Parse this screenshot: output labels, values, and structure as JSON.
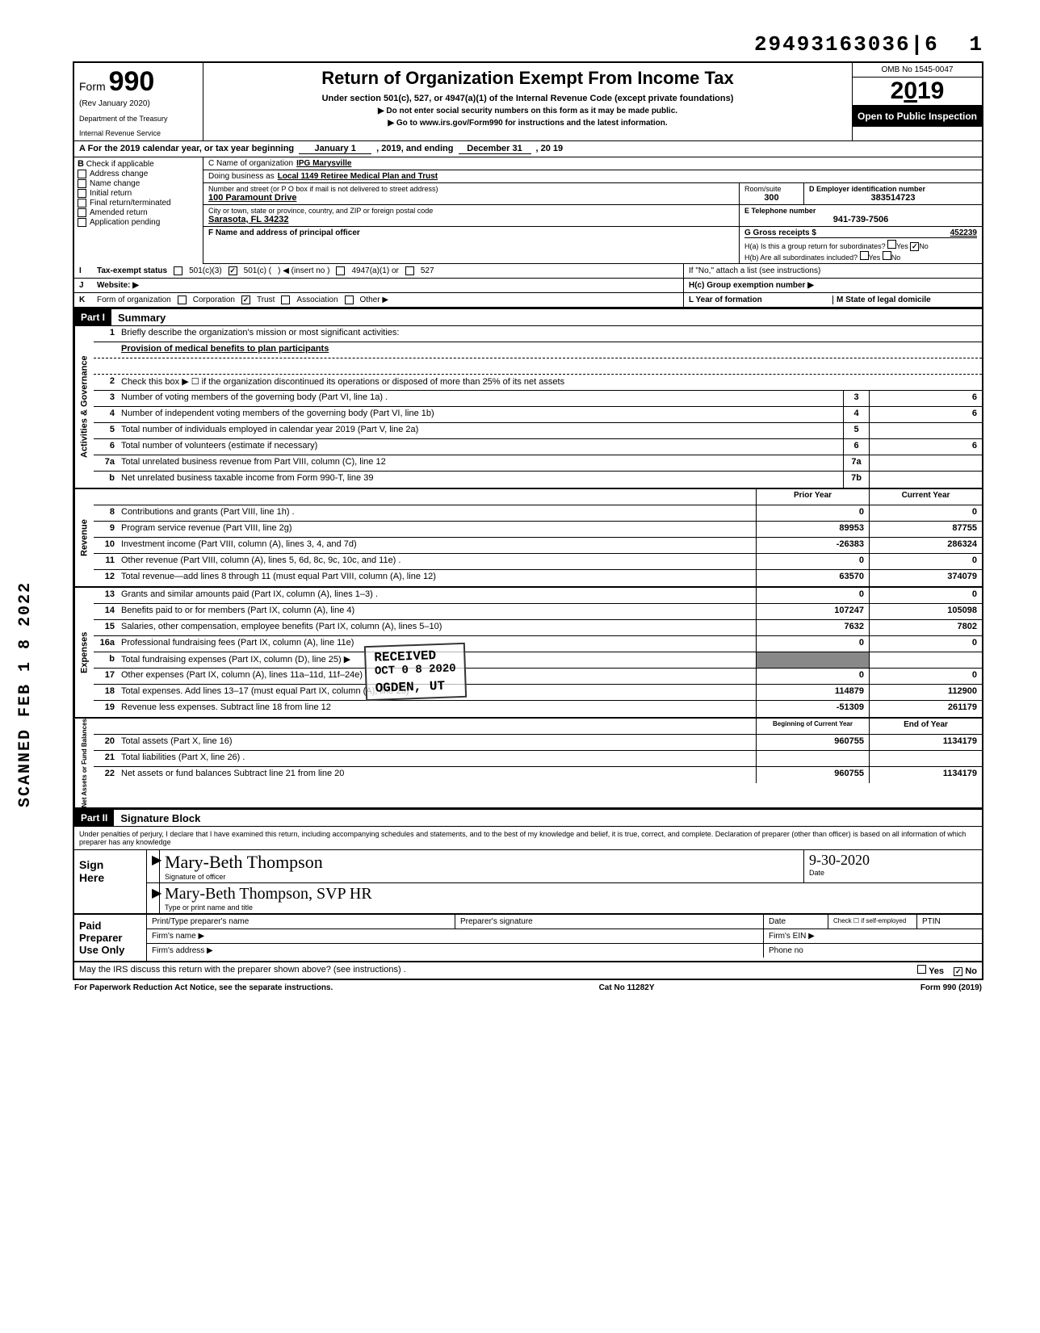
{
  "top_number": "29493163036|6",
  "top_page": "1",
  "form": {
    "prefix": "Form",
    "number": "990",
    "rev": "(Rev January 2020)",
    "dept1": "Department of the Treasury",
    "dept2": "Internal Revenue Service",
    "title": "Return of Organization Exempt From Income Tax",
    "sub": "Under section 501(c), 527, or 4947(a)(1) of the Internal Revenue Code (except private foundations)",
    "arrow1": "▶ Do not enter social security numbers on this form as it may be made public.",
    "arrow2": "▶ Go to www.irs.gov/Form990 for instructions and the latest information.",
    "omb": "OMB No 1545-0047",
    "year": "2019",
    "open": "Open to Public Inspection"
  },
  "rowA": {
    "label": "A   For the 2019 calendar year, or tax year beginning",
    "begin": "January 1",
    "mid": ", 2019, and ending",
    "end_month": "December 31",
    "end_year": ", 20  19"
  },
  "colB": {
    "letter": "B",
    "label": "Check if applicable",
    "items": [
      "Address change",
      "Name change",
      "Initial return",
      "Final return/terminated",
      "Amended return",
      "Application pending"
    ]
  },
  "colC": {
    "name_label": "C Name of organization",
    "name_value": "IPG Marysville",
    "dba_label": "Doing business as",
    "dba_value": "Local 1149 Retiree Medical Plan and Trust",
    "street_label": "Number and street (or P O  box if mail is not delivered to street address)",
    "street_value": "100 Paramount Drive",
    "room_label": "Room/suite",
    "room_value": "300",
    "city_label": "City or town, state or province, country, and ZIP or foreign postal code",
    "city_value": "Sarasota, FL  34232",
    "f_label": "F Name and address of principal officer"
  },
  "colD": {
    "label": "D Employer identification number",
    "value": "383514723",
    "e_label": "E Telephone number",
    "e_value": "941-739-7506",
    "g_label": "G Gross receipts $",
    "g_value": "452239"
  },
  "colH": {
    "ha": "H(a) Is this a group return for subordinates?",
    "ha_yes": "Yes",
    "ha_no": "No",
    "hb": "H(b) Are all subordinates included?",
    "hb_yes": "Yes",
    "hb_no": "No",
    "hb_note": "If \"No,\" attach a list (see instructions)",
    "hc": "H(c) Group exemption number ▶"
  },
  "rowI": {
    "letter": "I",
    "label": "Tax-exempt status",
    "opts": [
      "501(c)(3)",
      "501(c) (",
      "4947(a)(1) or",
      "527"
    ],
    "insert": ") ◀ (insert no )"
  },
  "rowJ": {
    "letter": "J",
    "label": "Website: ▶"
  },
  "rowK": {
    "letter": "K",
    "label": "Form of organization",
    "opts": [
      "Corporation",
      "Trust",
      "Association",
      "Other ▶"
    ],
    "l_label": "L Year of formation",
    "m_label": "M State of legal domicile"
  },
  "part1": {
    "badge": "Part I",
    "title": "Summary"
  },
  "gov": {
    "side": "Activities & Governance",
    "r1": "Briefly describe the organization's mission or most significant activities:",
    "r1b": "Provision of medical benefits to plan participants",
    "r2": "Check this box ▶ ☐ if the organization discontinued its operations or disposed of more than 25% of its net assets",
    "r3": "Number of voting members of the governing body (Part VI, line 1a) .",
    "r3v": "6",
    "r4": "Number of independent voting members of the governing body (Part VI, line 1b)",
    "r4v": "6",
    "r5": "Total number of individuals employed in calendar year 2019 (Part V, line 2a)",
    "r5v": "",
    "r6": "Total number of volunteers (estimate if necessary)",
    "r6v": "6",
    "r7a": "Total unrelated business revenue from Part VIII, column (C), line 12",
    "r7b": "Net unrelated business taxable income from Form 990-T, line 39"
  },
  "hdr_prior": "Prior Year",
  "hdr_current": "Current Year",
  "rev": {
    "side": "Revenue",
    "rows": [
      {
        "n": "8",
        "d": "Contributions and grants (Part VIII, line 1h) .",
        "p": "0",
        "c": "0"
      },
      {
        "n": "9",
        "d": "Program service revenue (Part VIII, line 2g)",
        "p": "89953",
        "c": "87755"
      },
      {
        "n": "10",
        "d": "Investment income (Part VIII, column (A), lines 3, 4, and 7d)",
        "p": "-26383",
        "c": "286324"
      },
      {
        "n": "11",
        "d": "Other revenue (Part VIII, column (A), lines 5, 6d, 8c, 9c, 10c, and 11e) .",
        "p": "0",
        "c": "0"
      },
      {
        "n": "12",
        "d": "Total revenue—add lines 8 through 11 (must equal Part VIII, column (A), line 12)",
        "p": "63570",
        "c": "374079"
      }
    ]
  },
  "exp": {
    "side": "Expenses",
    "rows": [
      {
        "n": "13",
        "d": "Grants and similar amounts paid (Part IX, column (A), lines 1–3) .",
        "p": "0",
        "c": "0"
      },
      {
        "n": "14",
        "d": "Benefits paid to or for members (Part IX, column (A), line 4)",
        "p": "107247",
        "c": "105098"
      },
      {
        "n": "15",
        "d": "Salaries, other compensation, employee benefits (Part IX, column (A), lines 5–10)",
        "p": "7632",
        "c": "7802"
      },
      {
        "n": "16a",
        "d": "Professional fundraising fees (Part IX, column (A),  line 11e)",
        "p": "0",
        "c": "0"
      },
      {
        "n": "b",
        "d": "Total fundraising expenses (Part IX, column (D), line 25) ▶",
        "p": "",
        "c": ""
      },
      {
        "n": "17",
        "d": "Other expenses (Part IX, column (A), lines 11a–11d, 11f–24e)",
        "p": "0",
        "c": "0"
      },
      {
        "n": "18",
        "d": "Total expenses. Add lines 13–17 (must equal Part IX, column (A), line 25)",
        "p": "114879",
        "c": "112900"
      },
      {
        "n": "19",
        "d": "Revenue less expenses. Subtract line 18 from line 12",
        "p": "-51309",
        "c": "261179"
      }
    ]
  },
  "net_hdr_prior": "Beginning of Current Year",
  "net_hdr_current": "End of Year",
  "net": {
    "side": "Net Assets or Fund Balances",
    "rows": [
      {
        "n": "20",
        "d": "Total assets (Part X, line 16)",
        "p": "960755",
        "c": "1134179"
      },
      {
        "n": "21",
        "d": "Total liabilities (Part X, line 26) .",
        "p": "",
        "c": ""
      },
      {
        "n": "22",
        "d": "Net assets or fund balances  Subtract line 21 from line 20",
        "p": "960755",
        "c": "1134179"
      }
    ]
  },
  "part2": {
    "badge": "Part II",
    "title": "Signature Block"
  },
  "perjury": "Under penalties of perjury, I declare that I have examined this return, including accompanying schedules and statements, and to the best of my knowledge and belief, it is true, correct, and complete. Declaration of preparer (other than officer) is based on all information of which preparer has any knowledge",
  "sign": {
    "left1": "Sign",
    "left2": "Here",
    "sig_value": "Mary-Beth Thompson",
    "sig_label": "Signature of officer",
    "date_label": "Date",
    "date_value": "9-30-2020",
    "name_value": "Mary-Beth Thompson,  SVP HR",
    "name_label": "Type or print name and title"
  },
  "paid": {
    "left1": "Paid",
    "left2": "Preparer",
    "left3": "Use Only",
    "h1": "Print/Type preparer's name",
    "h2": "Preparer's signature",
    "h3": "Date",
    "h4": "Check ☐ if self-employed",
    "h5": "PTIN",
    "firm_name": "Firm's name    ▶",
    "firm_ein": "Firm's EIN ▶",
    "firm_addr": "Firm's address ▶",
    "phone": "Phone no"
  },
  "irs_discuss": "May the IRS discuss this return with the preparer shown above? (see instructions)   .",
  "irs_yes": "Yes",
  "irs_no": "No",
  "footer": {
    "left": "For Paperwork Reduction Act Notice, see the separate instructions.",
    "mid": "Cat No 11282Y",
    "right": "Form 990 (2019)"
  },
  "stamps": {
    "received": "RECEIVED",
    "received_date": "OCT 0 8 2020",
    "ogden": "OGDEN, UT",
    "scanned": "SCANNED FEB 1 8 2022"
  }
}
